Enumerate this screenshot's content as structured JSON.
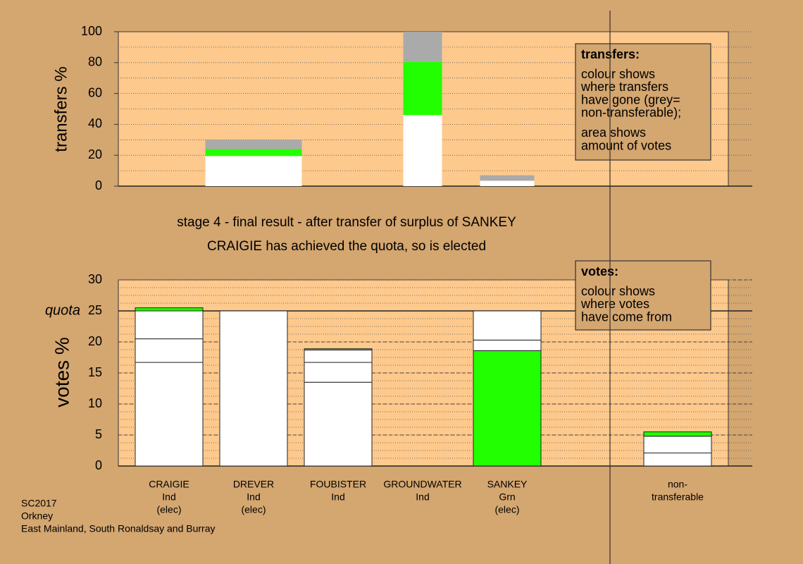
{
  "chart_data": [
    {
      "type": "stacked-bar",
      "ylabel": "transfers %",
      "ylim": [
        0,
        100
      ],
      "yticks": [
        0,
        20,
        40,
        60,
        80,
        100
      ],
      "box": {
        "title": "transfers:",
        "paragraphs": [
          [
            "colour shows",
            "where transfers",
            "have gone (grey=",
            "non-transferable);"
          ],
          [
            "area shows",
            "amount of votes"
          ]
        ]
      },
      "series": [
        {
          "values": [
            null,
            19.5,
            null,
            46,
            3.5,
            null,
            null
          ],
          "colors": [
            null,
            "#ffffff",
            null,
            "#ffffff",
            "#ffffff",
            null,
            null
          ]
        },
        {
          "values": [
            null,
            4.5,
            null,
            34.5,
            3.5,
            null,
            null
          ],
          "colors": [
            null,
            "#22ff00",
            null,
            "#22ff00",
            "#aaaaaa",
            null,
            null
          ]
        },
        {
          "values": [
            null,
            6,
            null,
            19.5,
            null,
            null,
            null
          ],
          "colors": [
            null,
            "#aaaaaa",
            null,
            "#aaaaaa",
            null,
            null,
            null
          ]
        }
      ]
    },
    {
      "type": "stacked-bar",
      "title_lines": [
        "stage 4 - final result - after transfer of surplus of SANKEY",
        "CRAIGIE has achieved the quota, so is elected"
      ],
      "ylabel": "votes %",
      "ylim": [
        0,
        30
      ],
      "yticks": [
        0,
        5,
        10,
        15,
        20,
        25,
        30
      ],
      "quota": 25,
      "quota_label": "quota",
      "box": {
        "title": "votes:",
        "paragraphs": [
          [
            "colour shows",
            "where votes",
            "have come from"
          ]
        ]
      },
      "categories": [
        [
          "CRAIGIE",
          "Ind",
          "(elec)"
        ],
        [
          "DREVER",
          "Ind",
          "(elec)"
        ],
        [
          "FOUBISTER",
          "Ind"
        ],
        [
          "GROUNDWATER",
          "Ind"
        ],
        [
          "SANKEY",
          "Grn",
          "(elec)"
        ],
        null,
        [
          "non-",
          "transferable"
        ]
      ],
      "series": [
        {
          "values": [
            16.7,
            25,
            13.5,
            0,
            18.6,
            null,
            2.1
          ],
          "colors": [
            "#ffffff",
            "#ffffff",
            "#ffffff",
            "#ffffff",
            "#22ff00",
            null,
            "#ffffff"
          ]
        },
        {
          "values": [
            3.8,
            null,
            3.2,
            null,
            1.7,
            null,
            2.7
          ],
          "colors": [
            "#ffffff",
            null,
            "#ffffff",
            null,
            "#ffffff",
            null,
            "#ffffff"
          ]
        },
        {
          "values": [
            4.5,
            null,
            2.0,
            null,
            4.7,
            null,
            0.7
          ],
          "colors": [
            "#ffffff",
            null,
            "#ffffff",
            null,
            "#ffffff",
            null,
            "#22ff00"
          ]
        },
        {
          "values": [
            0.5,
            null,
            0.2,
            null,
            null,
            null,
            null
          ],
          "colors": [
            "#22ff00",
            null,
            "#22ff00",
            null,
            null,
            null,
            null
          ]
        }
      ]
    }
  ],
  "footer": [
    "SC2017",
    "Orkney",
    "East Mainland, South Ronaldsay and Burray"
  ]
}
